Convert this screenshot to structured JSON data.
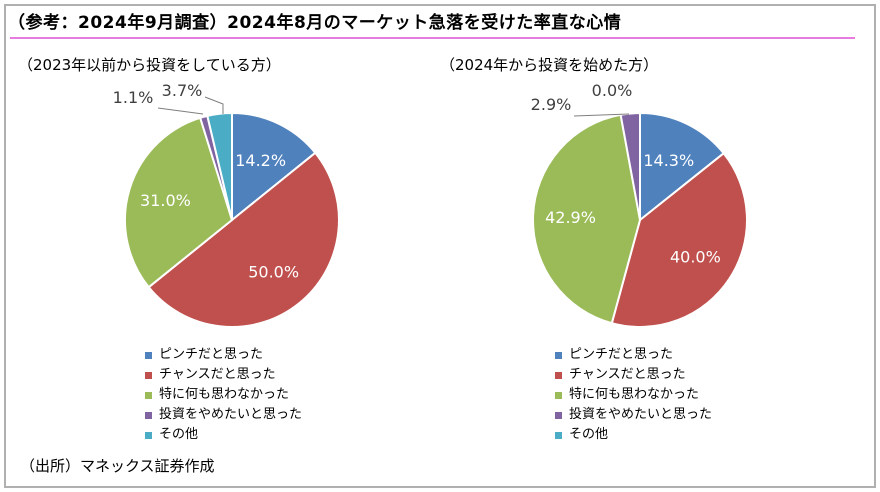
{
  "title": "（参考：2024年9月調査）2024年8月のマーケット急落を受けた率直な心情",
  "source": "（出所）マネックス証券作成",
  "chart_data": [
    {
      "type": "pie",
      "title": "（2023年以前から投資をしている方）",
      "categories": [
        "ピンチだと思った",
        "チャンスだと思った",
        "特に何も思わなかった",
        "投資をやめたいと思った",
        "その他"
      ],
      "values": [
        14.2,
        50.0,
        31.0,
        1.1,
        3.7
      ],
      "labels": [
        "14.2%",
        "50.0%",
        "31.0%",
        "1.1%",
        "3.7%"
      ],
      "colors": [
        "#4f81bd",
        "#c0504d",
        "#9bbb59",
        "#8064a2",
        "#4bacc6"
      ]
    },
    {
      "type": "pie",
      "title": "（2024年から投資を始めた方）",
      "categories": [
        "ピンチだと思った",
        "チャンスだと思った",
        "特に何も思わなかった",
        "投資をやめたいと思った",
        "その他"
      ],
      "values": [
        14.3,
        40.0,
        42.9,
        2.9,
        0.0
      ],
      "labels": [
        "14.3%",
        "40.0%",
        "42.9%",
        "2.9%",
        "0.0%"
      ],
      "colors": [
        "#4f81bd",
        "#c0504d",
        "#9bbb59",
        "#8064a2",
        "#4bacc6"
      ]
    }
  ]
}
